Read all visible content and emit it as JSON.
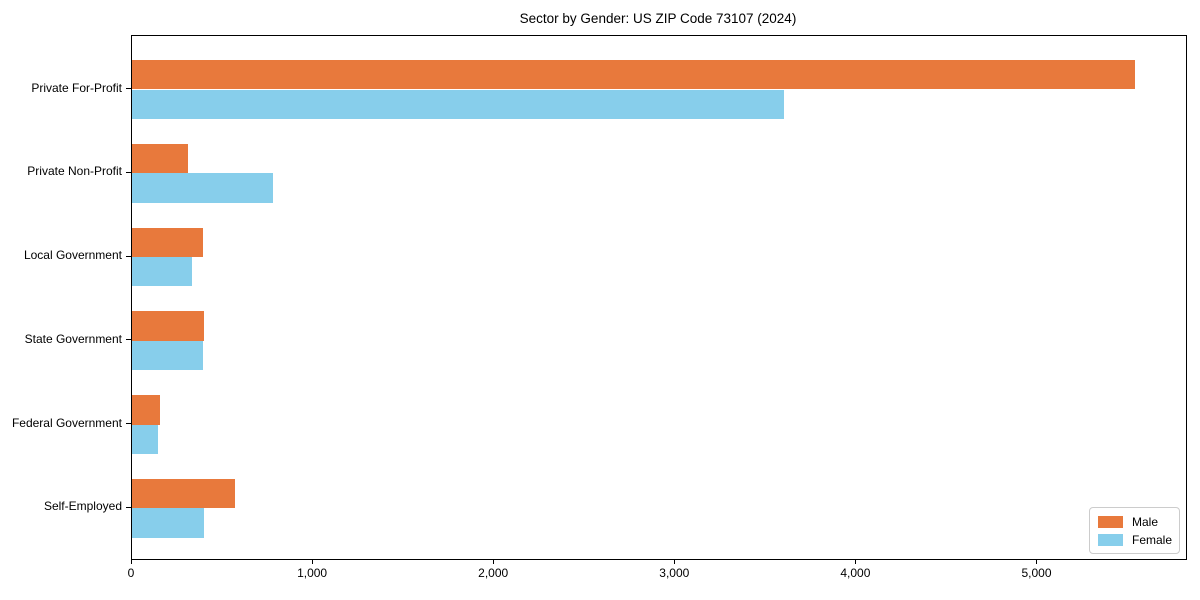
{
  "chart_data": {
    "type": "bar",
    "orientation": "horizontal",
    "title": "Sector by Gender: US ZIP Code 73107 (2024)",
    "categories": [
      "Private For-Profit",
      "Private Non-Profit",
      "Local Government",
      "State Government",
      "Federal Government",
      "Self-Employed"
    ],
    "series": [
      {
        "name": "Male",
        "color": "#E8793C",
        "values": [
          5540,
          310,
          390,
          400,
          155,
          570
        ]
      },
      {
        "name": "Female",
        "color": "#87CEEB",
        "values": [
          3600,
          780,
          330,
          390,
          145,
          400
        ]
      }
    ],
    "xlabel": "",
    "ylabel": "",
    "xlim": [
      0,
      5820
    ],
    "xticks": [
      0,
      1000,
      2000,
      3000,
      4000,
      5000
    ],
    "xtick_labels": [
      "0",
      "1,000",
      "2,000",
      "3,000",
      "4,000",
      "5,000"
    ],
    "grid": false,
    "legend_position": "lower right",
    "axis_color": "#000000",
    "background_color": "#ffffff"
  }
}
